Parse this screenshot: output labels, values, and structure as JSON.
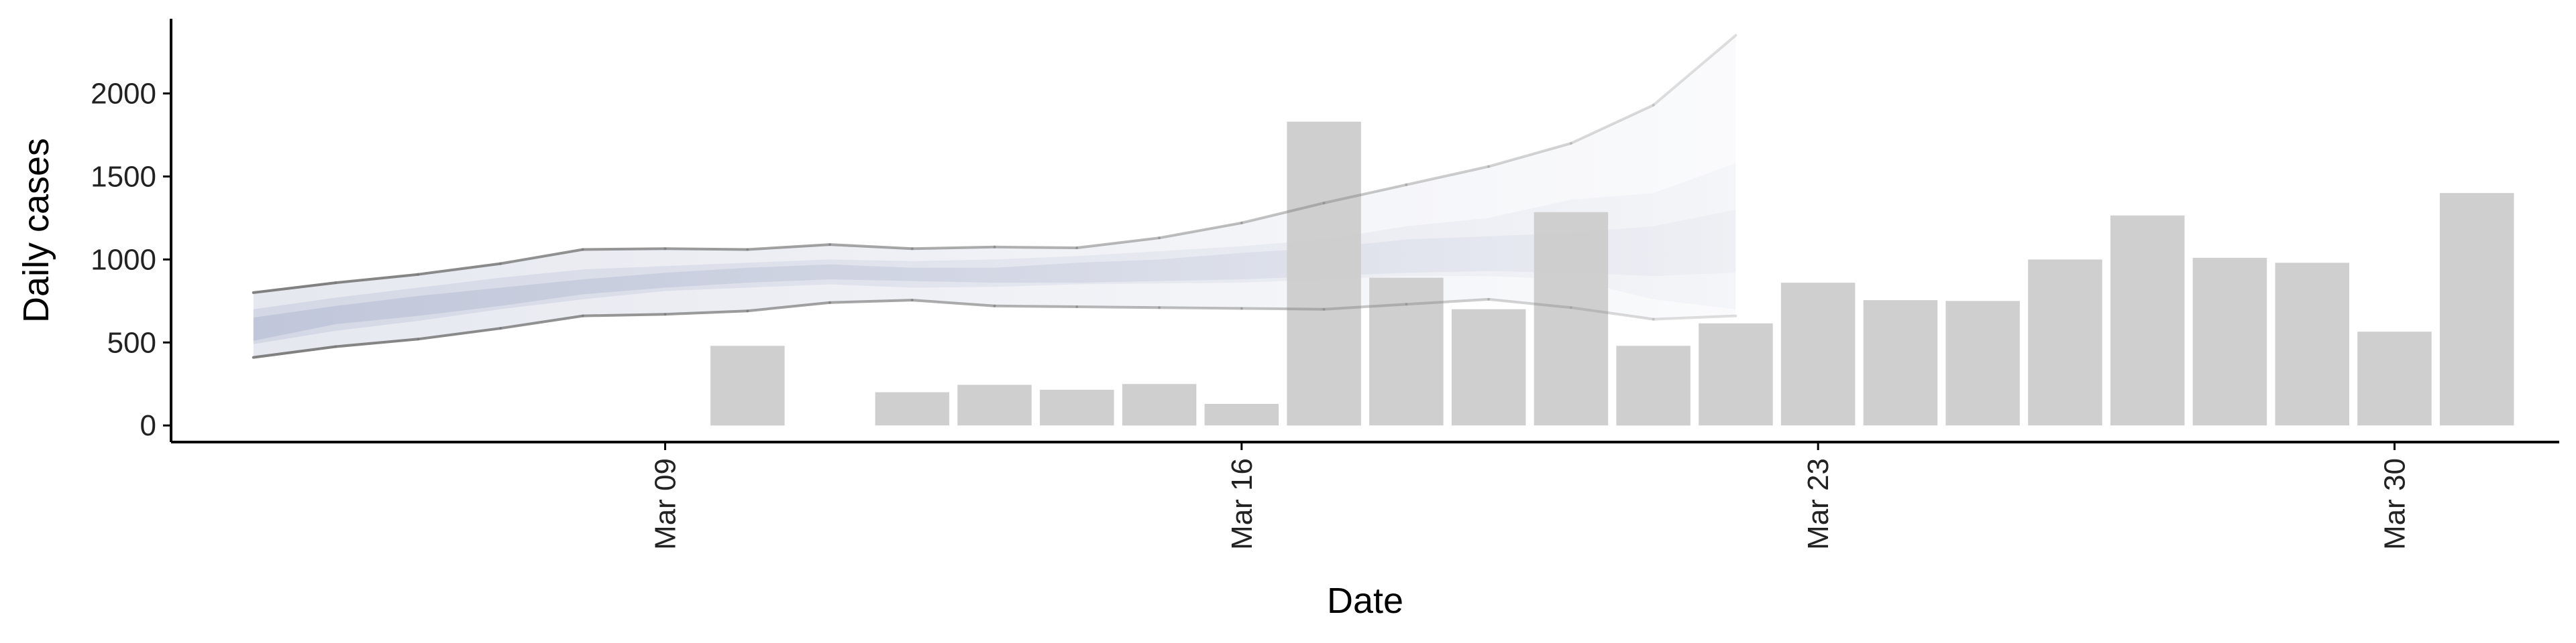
{
  "chart_data": {
    "type": "bar",
    "xlabel": "Date",
    "ylabel": "Daily cases",
    "ylim": [
      -100,
      2450
    ],
    "xlim": [
      "2020-03-03",
      "2020-04-01"
    ],
    "y_ticks": [
      0,
      500,
      1000,
      1500,
      2000
    ],
    "x_ticks": [
      {
        "date": "2020-03-09",
        "label": "Mar 09"
      },
      {
        "date": "2020-03-16",
        "label": "Mar 16"
      },
      {
        "date": "2020-03-23",
        "label": "Mar 23"
      },
      {
        "date": "2020-03-30",
        "label": "Mar 30"
      }
    ],
    "grid": false,
    "legend": "none",
    "bars": {
      "color": "#cccccc",
      "points": [
        {
          "date": "2020-03-10",
          "value": 480
        },
        {
          "date": "2020-03-12",
          "value": 200
        },
        {
          "date": "2020-03-13",
          "value": 245
        },
        {
          "date": "2020-03-14",
          "value": 215
        },
        {
          "date": "2020-03-15",
          "value": 250
        },
        {
          "date": "2020-03-16",
          "value": 130
        },
        {
          "date": "2020-03-17",
          "value": 1830
        },
        {
          "date": "2020-03-18",
          "value": 890
        },
        {
          "date": "2020-03-19",
          "value": 700
        },
        {
          "date": "2020-03-20",
          "value": 1285
        },
        {
          "date": "2020-03-21",
          "value": 480
        },
        {
          "date": "2020-03-22",
          "value": 615
        },
        {
          "date": "2020-03-23",
          "value": 860
        },
        {
          "date": "2020-03-24",
          "value": 755
        },
        {
          "date": "2020-03-25",
          "value": 750
        },
        {
          "date": "2020-03-26",
          "value": 1000
        },
        {
          "date": "2020-03-27",
          "value": 1265
        },
        {
          "date": "2020-03-28",
          "value": 1010
        },
        {
          "date": "2020-03-29",
          "value": 980
        },
        {
          "date": "2020-03-30",
          "value": 565
        },
        {
          "date": "2020-03-31",
          "value": 1400
        }
      ]
    },
    "forecast": {
      "color": "#aab2cc",
      "dates": [
        "2020-03-04",
        "2020-03-05",
        "2020-03-06",
        "2020-03-07",
        "2020-03-08",
        "2020-03-09",
        "2020-03-10",
        "2020-03-11",
        "2020-03-12",
        "2020-03-13",
        "2020-03-14",
        "2020-03-15",
        "2020-03-16",
        "2020-03-17",
        "2020-03-18",
        "2020-03-19",
        "2020-03-20",
        "2020-03-21",
        "2020-03-22"
      ],
      "outer_lower": [
        410,
        475,
        520,
        585,
        660,
        670,
        690,
        740,
        755,
        720,
        715,
        710,
        705,
        700,
        730,
        760,
        710,
        640,
        660
      ],
      "outer_upper": [
        800,
        860,
        910,
        975,
        1060,
        1065,
        1060,
        1090,
        1065,
        1075,
        1070,
        1130,
        1220,
        1340,
        1450,
        1560,
        1700,
        1930,
        2350
      ],
      "mid_lower": [
        490,
        570,
        630,
        700,
        760,
        810,
        830,
        850,
        830,
        835,
        850,
        855,
        860,
        880,
        900,
        900,
        880,
        760,
        700
      ],
      "mid_upper": [
        700,
        770,
        830,
        890,
        940,
        960,
        980,
        1000,
        990,
        1000,
        1020,
        1050,
        1080,
        1120,
        1200,
        1250,
        1360,
        1400,
        1580
      ],
      "inner_lower": [
        510,
        610,
        660,
        720,
        790,
        830,
        860,
        880,
        870,
        860,
        860,
        870,
        880,
        900,
        920,
        930,
        920,
        900,
        920
      ],
      "inner_upper": [
        650,
        720,
        780,
        830,
        880,
        920,
        950,
        970,
        950,
        950,
        980,
        1000,
        1040,
        1070,
        1120,
        1140,
        1160,
        1200,
        1300
      ]
    }
  }
}
